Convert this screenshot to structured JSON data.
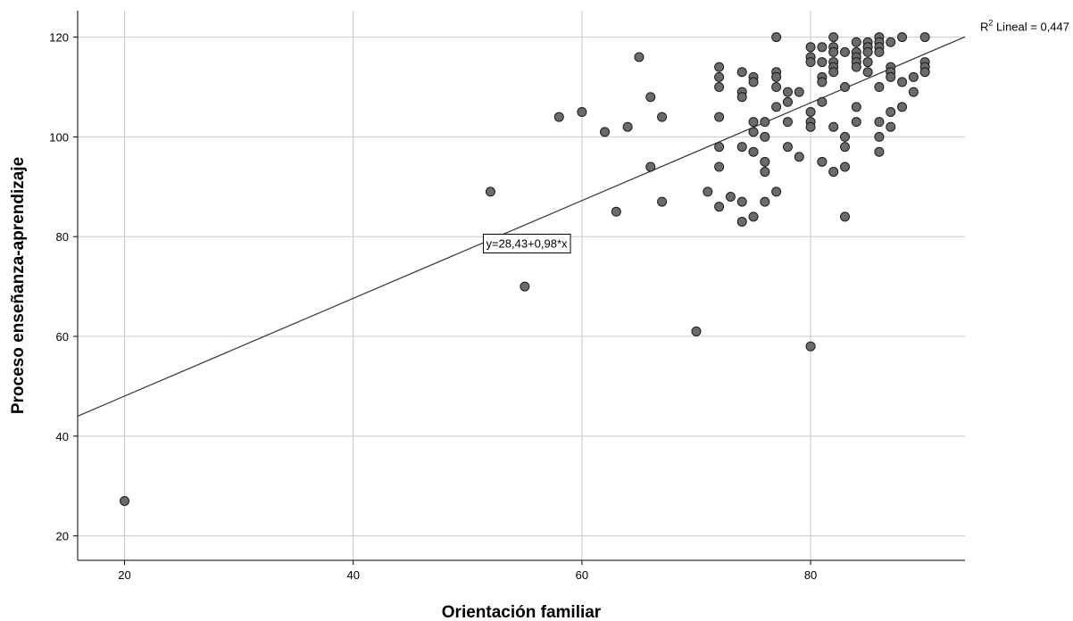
{
  "chart_data": {
    "type": "scatter",
    "title": "",
    "xlabel": "Orientación familiar",
    "ylabel": "Proceso enseñanza-aprendizaje",
    "xlim": [
      15.9,
      93.5
    ],
    "ylim": [
      15.1,
      125.3
    ],
    "xticks": [
      20,
      40,
      60,
      80
    ],
    "yticks": [
      20,
      40,
      60,
      80,
      100,
      120
    ],
    "grid": true,
    "legend": "none",
    "colors": {
      "point_fill": "#6b6b6b",
      "point_stroke": "#1a1a1a",
      "grid": "#c8c8c8",
      "line": "#333333"
    },
    "fit_line": {
      "intercept": 28.43,
      "slope": 0.98,
      "equation_label": "y=28,43+0,98*x",
      "r2_prefix": "R",
      "r2_superscript": "2",
      "r2_label": " Lineal = 0,447"
    },
    "points": [
      [
        20,
        27
      ],
      [
        52,
        89
      ],
      [
        55,
        70
      ],
      [
        58,
        104
      ],
      [
        60,
        105
      ],
      [
        62,
        101
      ],
      [
        63,
        85
      ],
      [
        64,
        102
      ],
      [
        65,
        116
      ],
      [
        66,
        108
      ],
      [
        66,
        94
      ],
      [
        67,
        104
      ],
      [
        67,
        87
      ],
      [
        70,
        61
      ],
      [
        71,
        89
      ],
      [
        72,
        114
      ],
      [
        72,
        112
      ],
      [
        72,
        110
      ],
      [
        72,
        104
      ],
      [
        72,
        98
      ],
      [
        72,
        94
      ],
      [
        72,
        86
      ],
      [
        73,
        88
      ],
      [
        74,
        113
      ],
      [
        74,
        109
      ],
      [
        74,
        108
      ],
      [
        74,
        98
      ],
      [
        74,
        87
      ],
      [
        74,
        83
      ],
      [
        75,
        112
      ],
      [
        75,
        111
      ],
      [
        75,
        103
      ],
      [
        75,
        101
      ],
      [
        75,
        97
      ],
      [
        75,
        84
      ],
      [
        76,
        103
      ],
      [
        76,
        100
      ],
      [
        76,
        95
      ],
      [
        76,
        93
      ],
      [
        76,
        87
      ],
      [
        77,
        120
      ],
      [
        77,
        113
      ],
      [
        77,
        112
      ],
      [
        77,
        110
      ],
      [
        77,
        106
      ],
      [
        77,
        89
      ],
      [
        78,
        109
      ],
      [
        78,
        107
      ],
      [
        78,
        103
      ],
      [
        78,
        98
      ],
      [
        79,
        109
      ],
      [
        79,
        96
      ],
      [
        80,
        118
      ],
      [
        80,
        116
      ],
      [
        80,
        115
      ],
      [
        80,
        105
      ],
      [
        80,
        103
      ],
      [
        80,
        102
      ],
      [
        80,
        58
      ],
      [
        81,
        118
      ],
      [
        81,
        115
      ],
      [
        81,
        112
      ],
      [
        81,
        111
      ],
      [
        81,
        107
      ],
      [
        81,
        95
      ],
      [
        82,
        120
      ],
      [
        82,
        118
      ],
      [
        82,
        117
      ],
      [
        82,
        115
      ],
      [
        82,
        114
      ],
      [
        82,
        113
      ],
      [
        82,
        102
      ],
      [
        82,
        93
      ],
      [
        83,
        117
      ],
      [
        83,
        110
      ],
      [
        83,
        100
      ],
      [
        83,
        98
      ],
      [
        83,
        94
      ],
      [
        83,
        84
      ],
      [
        84,
        119
      ],
      [
        84,
        117
      ],
      [
        84,
        116
      ],
      [
        84,
        115
      ],
      [
        84,
        114
      ],
      [
        84,
        106
      ],
      [
        84,
        103
      ],
      [
        85,
        119
      ],
      [
        85,
        118
      ],
      [
        85,
        117
      ],
      [
        85,
        115
      ],
      [
        85,
        113
      ],
      [
        86,
        120
      ],
      [
        86,
        119
      ],
      [
        86,
        118
      ],
      [
        86,
        117
      ],
      [
        86,
        110
      ],
      [
        86,
        103
      ],
      [
        86,
        100
      ],
      [
        86,
        97
      ],
      [
        87,
        119
      ],
      [
        87,
        114
      ],
      [
        87,
        113
      ],
      [
        87,
        112
      ],
      [
        87,
        105
      ],
      [
        87,
        102
      ],
      [
        88,
        120
      ],
      [
        88,
        111
      ],
      [
        88,
        106
      ],
      [
        89,
        112
      ],
      [
        89,
        109
      ],
      [
        90,
        120
      ],
      [
        90,
        115
      ],
      [
        90,
        114
      ],
      [
        90,
        113
      ]
    ]
  }
}
